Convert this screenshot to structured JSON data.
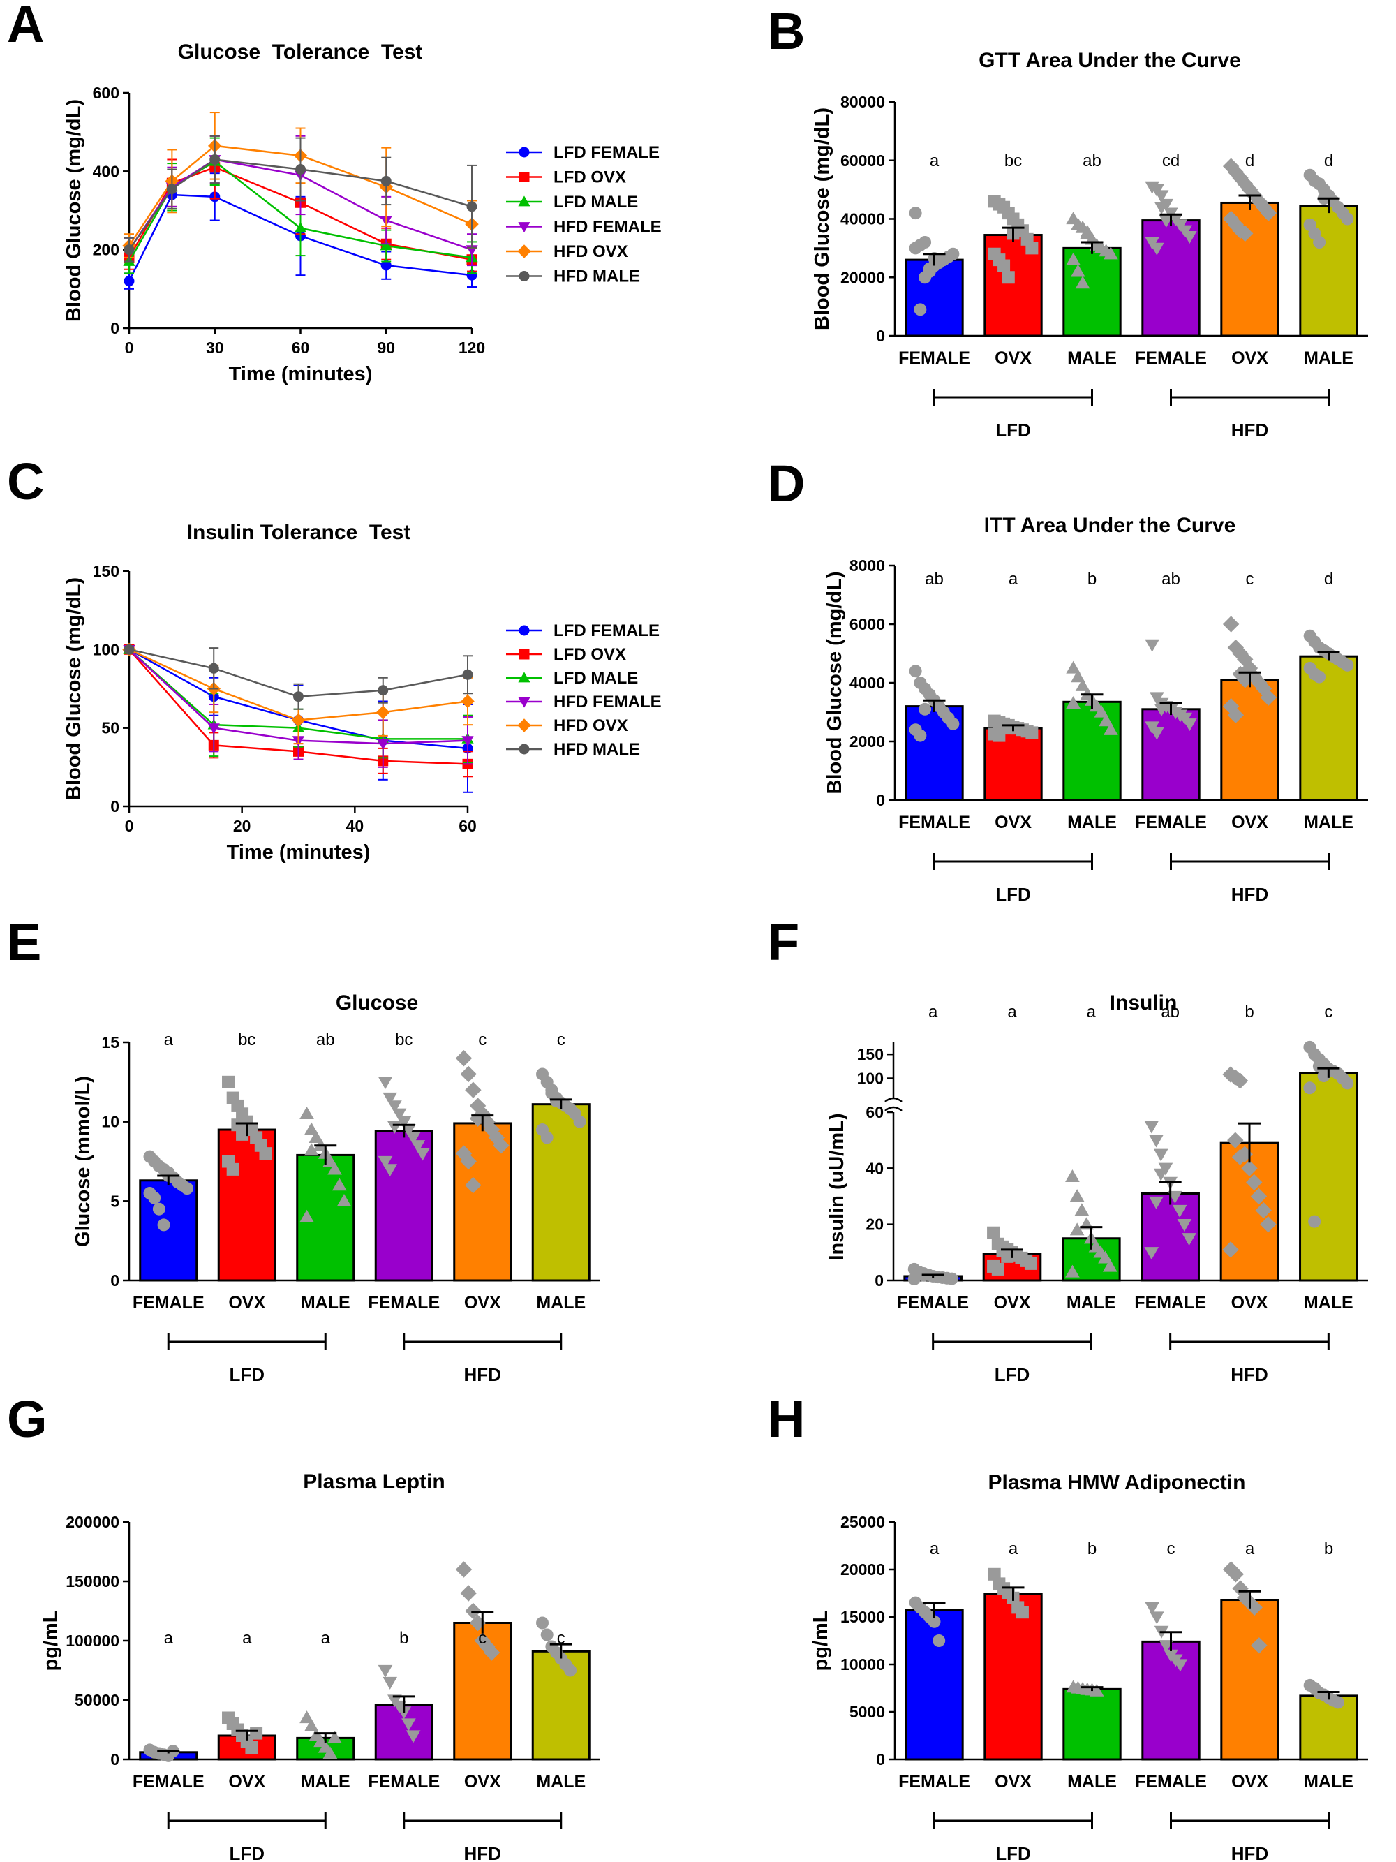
{
  "colors": {
    "blue": "#0000ff",
    "red": "#ff0000",
    "green": "#00c000",
    "purple": "#9900cc",
    "orange": "#ff8000",
    "olive": "#bfbf00",
    "grey": "#595959",
    "dot": "#9a9a9a"
  },
  "chart_data": [
    {
      "panel": "A",
      "type": "line",
      "title": "Glucose  Tolerance  Test",
      "xlabel": "Time (minutes)",
      "ylabel": "Blood Glucose (mg/dL)",
      "xlim": [
        0,
        120
      ],
      "ylim": [
        0,
        600
      ],
      "xticks": [
        0,
        30,
        60,
        90,
        120
      ],
      "yticks": [
        0,
        200,
        400,
        600
      ],
      "x": [
        0,
        15,
        30,
        60,
        90,
        120
      ],
      "series": [
        {
          "name": "LFD FEMALE",
          "color": "blue",
          "marker": "circle",
          "values": [
            120,
            340,
            335,
            235,
            160,
            135
          ],
          "err": [
            20,
            40,
            60,
            100,
            35,
            30
          ]
        },
        {
          "name": "LFD OVX",
          "color": "red",
          "marker": "square",
          "values": [
            180,
            370,
            410,
            320,
            215,
            175
          ],
          "err": [
            30,
            60,
            80,
            80,
            40,
            30
          ]
        },
        {
          "name": "LFD MALE",
          "color": "green",
          "marker": "triangle",
          "values": [
            170,
            360,
            425,
            255,
            210,
            180
          ],
          "err": [
            30,
            60,
            60,
            70,
            40,
            40
          ]
        },
        {
          "name": "HFD FEMALE",
          "color": "purple",
          "marker": "triangle-down",
          "values": [
            200,
            360,
            430,
            390,
            275,
            200
          ],
          "err": [
            30,
            50,
            60,
            100,
            60,
            40
          ]
        },
        {
          "name": "HFD OVX",
          "color": "orange",
          "marker": "diamond",
          "values": [
            210,
            375,
            465,
            440,
            360,
            265
          ],
          "err": [
            30,
            80,
            85,
            70,
            100,
            60
          ]
        },
        {
          "name": "HFD MALE",
          "color": "grey",
          "marker": "circle",
          "values": [
            200,
            355,
            430,
            405,
            375,
            310
          ],
          "err": [
            30,
            50,
            60,
            80,
            60,
            105
          ]
        }
      ]
    },
    {
      "panel": "B",
      "type": "bar",
      "title": "GTT Area Under the Curve",
      "ylabel": "Blood Glucose (mg/dL)",
      "ylim": [
        0,
        80000
      ],
      "yticks": [
        0,
        20000,
        40000,
        60000,
        80000
      ],
      "categories": [
        "FEMALE",
        "OVX",
        "MALE",
        "FEMALE",
        "OVX",
        "MALE"
      ],
      "groups": [
        "LFD",
        "HFD"
      ],
      "values": [
        26000,
        34500,
        30000,
        39500,
        45500,
        44500
      ],
      "sem": [
        2000,
        2500,
        2000,
        2000,
        2500,
        2500
      ],
      "letters": [
        "a",
        "bc",
        "ab",
        "cd",
        "d",
        "d"
      ],
      "colors": [
        "blue",
        "red",
        "green",
        "purple",
        "orange",
        "olive"
      ],
      "markers": [
        "circle",
        "square",
        "triangle",
        "triangle-down",
        "diamond",
        "circle"
      ],
      "points": [
        [
          42000,
          9000,
          20000,
          22000,
          24000,
          25000,
          26000,
          27000,
          28000,
          30000,
          31000,
          32000,
          23000,
          26500
        ],
        [
          46000,
          45000,
          44000,
          42000,
          40000,
          38000,
          36000,
          33000,
          30000,
          28000,
          26000,
          24000,
          20000,
          35000
        ],
        [
          40000,
          38000,
          37000,
          35000,
          33000,
          31000,
          30000,
          29000,
          28000,
          26000,
          22000,
          18000,
          35500
        ],
        [
          51000,
          50000,
          48000,
          45000,
          42000,
          40000,
          38000,
          36000,
          34000,
          32000,
          30000,
          44000,
          39500
        ],
        [
          58000,
          56000,
          54000,
          52000,
          50000,
          48000,
          46000,
          44000,
          42000,
          40000,
          38000,
          36000,
          35000
        ],
        [
          55000,
          53000,
          52000,
          50000,
          48000,
          46000,
          44000,
          42000,
          40000,
          38000,
          35000,
          32000,
          47000
        ]
      ]
    },
    {
      "panel": "C",
      "type": "line",
      "title": "Insulin Tolerance  Test",
      "xlabel": "Time (minutes)",
      "ylabel": "Blood Glucose (mg/dL)",
      "xlim": [
        0,
        60
      ],
      "ylim": [
        0,
        150
      ],
      "xticks": [
        0,
        20,
        40,
        60
      ],
      "yticks": [
        0,
        50,
        100,
        150
      ],
      "x": [
        0,
        15,
        30,
        45,
        60
      ],
      "series": [
        {
          "name": "LFD FEMALE",
          "color": "blue",
          "marker": "circle",
          "values": [
            100,
            70,
            55,
            42,
            37
          ],
          "err": [
            0,
            12,
            22,
            25,
            28
          ]
        },
        {
          "name": "LFD OVX",
          "color": "red",
          "marker": "square",
          "values": [
            100,
            39,
            35,
            29,
            27
          ],
          "err": [
            0,
            8,
            5,
            8,
            8
          ]
        },
        {
          "name": "LFD MALE",
          "color": "green",
          "marker": "triangle",
          "values": [
            100,
            52,
            50,
            43,
            43
          ],
          "err": [
            0,
            20,
            12,
            12,
            15
          ]
        },
        {
          "name": "HFD FEMALE",
          "color": "purple",
          "marker": "triangle-down",
          "values": [
            100,
            50,
            42,
            40,
            42
          ],
          "err": [
            0,
            15,
            12,
            15,
            15
          ]
        },
        {
          "name": "HFD OVX",
          "color": "orange",
          "marker": "diamond",
          "values": [
            100,
            75,
            55,
            60,
            67
          ],
          "err": [
            0,
            15,
            15,
            15,
            15
          ]
        },
        {
          "name": "HFD MALE",
          "color": "grey",
          "marker": "circle",
          "values": [
            100,
            88,
            70,
            74,
            84
          ],
          "err": [
            0,
            13,
            8,
            8,
            12
          ]
        }
      ]
    },
    {
      "panel": "D",
      "type": "bar",
      "title": "ITT Area Under the Curve",
      "ylabel": "Blood Glucose (mg/dL)",
      "ylim": [
        0,
        8000
      ],
      "yticks": [
        0,
        2000,
        4000,
        6000,
        8000
      ],
      "categories": [
        "FEMALE",
        "OVX",
        "MALE",
        "FEMALE",
        "OVX",
        "MALE"
      ],
      "groups": [
        "LFD",
        "HFD"
      ],
      "values": [
        3200,
        2450,
        3350,
        3100,
        4100,
        4900
      ],
      "sem": [
        200,
        100,
        250,
        200,
        250,
        150
      ],
      "letters": [
        "ab",
        "a",
        "b",
        "ab",
        "c",
        "d"
      ],
      "colors": [
        "blue",
        "red",
        "green",
        "purple",
        "orange",
        "olive"
      ],
      "markers": [
        "circle",
        "square",
        "triangle",
        "triangle-down",
        "diamond",
        "circle"
      ],
      "points": [
        [
          4400,
          4000,
          3800,
          3600,
          3400,
          3200,
          3000,
          2800,
          2600,
          2400,
          2200,
          3100
        ],
        [
          2700,
          2650,
          2600,
          2550,
          2500,
          2450,
          2400,
          2350,
          2300,
          2250,
          2200,
          2550,
          2450
        ],
        [
          4500,
          4200,
          3900,
          3600,
          3400,
          3200,
          3000,
          2700,
          2400,
          3300
        ],
        [
          5300,
          3500,
          3300,
          3200,
          3100,
          3000,
          2900,
          2800,
          2600,
          2500,
          2300,
          3100
        ],
        [
          6000,
          5200,
          5000,
          4800,
          4500,
          4200,
          4000,
          3800,
          3500,
          3200,
          2900,
          4300,
          4100
        ],
        [
          5600,
          5400,
          5200,
          5100,
          5000,
          4900,
          4800,
          4700,
          4600,
          4500,
          4300,
          4200
        ]
      ]
    },
    {
      "panel": "E",
      "type": "bar",
      "title": "Glucose",
      "ylabel": "Glucose (mmol/L)",
      "ylim": [
        0,
        15
      ],
      "yticks": [
        0,
        5,
        10,
        15
      ],
      "categories": [
        "FEMALE",
        "OVX",
        "MALE",
        "FEMALE",
        "OVX",
        "MALE"
      ],
      "groups": [
        "LFD",
        "HFD"
      ],
      "values": [
        6.3,
        9.5,
        7.9,
        9.4,
        9.9,
        11.1
      ],
      "sem": [
        0.3,
        0.4,
        0.6,
        0.4,
        0.5,
        0.3
      ],
      "letters": [
        "a",
        "bc",
        "ab",
        "bc",
        "c",
        "c"
      ],
      "colors": [
        "blue",
        "red",
        "green",
        "purple",
        "orange",
        "olive"
      ],
      "markers": [
        "circle",
        "square",
        "triangle",
        "triangle-down",
        "diamond",
        "circle"
      ],
      "points": [
        [
          7.8,
          7.5,
          7.2,
          7.0,
          6.8,
          6.5,
          6.2,
          6.0,
          5.8,
          5.5,
          5.2,
          4.5,
          3.5,
          6.6
        ],
        [
          12.5,
          11.5,
          11.0,
          10.5,
          10.0,
          9.5,
          9.0,
          8.5,
          8.0,
          7.5,
          7.0,
          9.8,
          9.2
        ],
        [
          10.5,
          9.5,
          9.0,
          8.5,
          8.0,
          7.5,
          7.0,
          6.0,
          5.0,
          4.0,
          8.2
        ],
        [
          12.5,
          11.5,
          11.0,
          10.5,
          10.0,
          9.5,
          9.0,
          8.5,
          8.0,
          7.5,
          7.0,
          9.7
        ],
        [
          14.0,
          13.0,
          12.0,
          11.0,
          10.5,
          10.0,
          9.5,
          9.0,
          8.5,
          8.0,
          7.5,
          6.0,
          10.2
        ],
        [
          13.0,
          12.5,
          12.0,
          11.5,
          11.2,
          11.0,
          10.8,
          10.5,
          10.0,
          9.5,
          9.0,
          11.8,
          11.3
        ]
      ]
    },
    {
      "panel": "F",
      "type": "bar",
      "title": "Insulin",
      "ylabel": "Insulin (uU/mL)",
      "broken_axis": {
        "lower": [
          0,
          60
        ],
        "upper": [
          60,
          175
        ]
      },
      "yticks_lower": [
        0,
        20,
        40,
        60
      ],
      "yticks_upper": [
        100,
        150
      ],
      "categories": [
        "FEMALE",
        "OVX",
        "MALE",
        "FEMALE",
        "OVX",
        "MALE"
      ],
      "groups": [
        "LFD",
        "HFD"
      ],
      "values": [
        1.5,
        9.5,
        15,
        31,
        49,
        111
      ],
      "sem": [
        0.5,
        1.5,
        4,
        4,
        7,
        10
      ],
      "letters": [
        "a",
        "a",
        "a",
        "ab",
        "b",
        "c"
      ],
      "colors": [
        "blue",
        "red",
        "green",
        "purple",
        "orange",
        "olive"
      ],
      "markers": [
        "circle",
        "square",
        "triangle",
        "triangle-down",
        "diamond",
        "circle"
      ],
      "points": [
        [
          4,
          3,
          2.5,
          2,
          1.5,
          1.2,
          1,
          0.8,
          0.6,
          0.5,
          2.2,
          1.8
        ],
        [
          17,
          13,
          12,
          11,
          10,
          9,
          8,
          7,
          6,
          5,
          4,
          10.5,
          8.5
        ],
        [
          37,
          30,
          25,
          20,
          15,
          12,
          10,
          8,
          5,
          3,
          18
        ],
        [
          55,
          50,
          45,
          40,
          35,
          30,
          25,
          20,
          15,
          10,
          28,
          38
        ],
        [
          108,
          102,
          95,
          45,
          40,
          35,
          30,
          25,
          20,
          11,
          50,
          44
        ],
        [
          165,
          150,
          140,
          130,
          120,
          115,
          110,
          100,
          90,
          80,
          21,
          125,
          105
        ]
      ]
    },
    {
      "panel": "G",
      "type": "bar",
      "title": "Plasma Leptin",
      "ylabel": "pg/mL",
      "ylim": [
        0,
        200000
      ],
      "yticks": [
        0,
        50000,
        100000,
        150000,
        200000
      ],
      "categories": [
        "FEMALE",
        "OVX",
        "MALE",
        "FEMALE",
        "OVX",
        "MALE"
      ],
      "groups": [
        "LFD",
        "HFD"
      ],
      "values": [
        6000,
        20000,
        18000,
        46000,
        115000,
        91000
      ],
      "sem": [
        1000,
        4000,
        4000,
        7000,
        9000,
        6000
      ],
      "letters": [
        "a",
        "a",
        "a",
        "b",
        "c",
        "c"
      ],
      "colors": [
        "blue",
        "red",
        "green",
        "purple",
        "orange",
        "olive"
      ],
      "markers": [
        "circle",
        "square",
        "triangle",
        "triangle-down",
        "diamond",
        "circle"
      ],
      "points": [
        [
          8000,
          6000,
          5000,
          4000,
          3000,
          7000
        ],
        [
          35000,
          30000,
          25000,
          20000,
          15000,
          10000,
          22000
        ],
        [
          35000,
          28000,
          20000,
          15000,
          10000,
          5000,
          18000
        ],
        [
          75000,
          65000,
          50000,
          45000,
          40000,
          30000,
          20000
        ],
        [
          160000,
          140000,
          125000,
          115000,
          100000,
          95000,
          90000
        ],
        [
          115000,
          105000,
          95000,
          90000,
          85000,
          80000,
          75000
        ]
      ]
    },
    {
      "panel": "H",
      "type": "bar",
      "title": "Plasma HMW Adiponectin",
      "ylabel": "pg/mL",
      "ylim": [
        0,
        25000
      ],
      "yticks": [
        0,
        5000,
        10000,
        15000,
        20000,
        25000
      ],
      "categories": [
        "FEMALE",
        "OVX",
        "MALE",
        "FEMALE",
        "OVX",
        "MALE"
      ],
      "groups": [
        "LFD",
        "HFD"
      ],
      "values": [
        15700,
        17400,
        7400,
        12400,
        16800,
        6700
      ],
      "sem": [
        800,
        700,
        200,
        1000,
        900,
        400
      ],
      "letters": [
        "a",
        "a",
        "b",
        "c",
        "a",
        "b"
      ],
      "colors": [
        "blue",
        "red",
        "green",
        "purple",
        "orange",
        "olive"
      ],
      "markers": [
        "circle",
        "square",
        "triangle",
        "triangle-down",
        "diamond",
        "circle"
      ],
      "points": [
        [
          16500,
          16000,
          15500,
          15000,
          14500,
          12500
        ],
        [
          19500,
          18500,
          18000,
          17500,
          17000,
          16000,
          15500
        ],
        [
          7600,
          7500,
          7400,
          7350,
          7300,
          7200
        ],
        [
          16000,
          15000,
          13500,
          12000,
          11000,
          10500,
          10000
        ],
        [
          20000,
          19500,
          18000,
          17000,
          16500,
          16000,
          12000
        ],
        [
          7800,
          7500,
          7000,
          6800,
          6500,
          6200,
          6000
        ]
      ]
    }
  ]
}
